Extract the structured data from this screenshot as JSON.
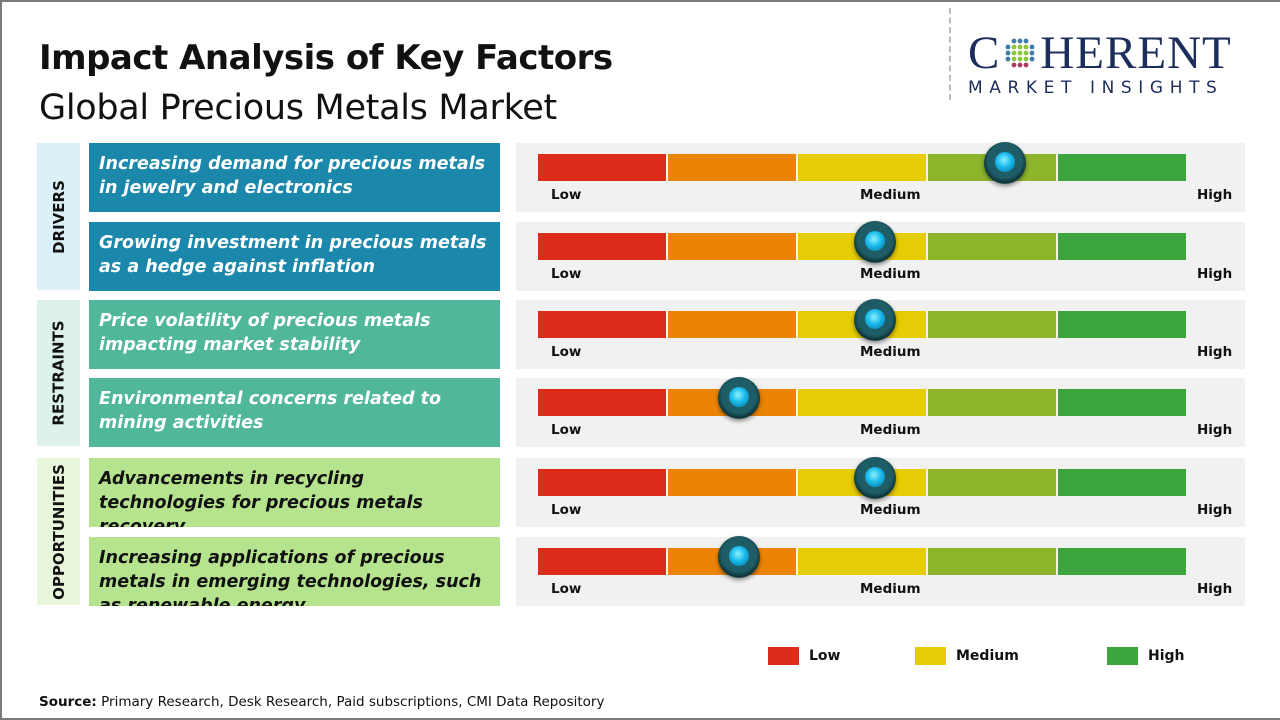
{
  "header": {
    "title": "Impact Analysis of Key Factors",
    "subtitle": "Global Precious Metals Market"
  },
  "logo": {
    "main_text": "COHERENT",
    "sub_text": "MARKET INSIGHTS"
  },
  "scale_labels": {
    "low": "Low",
    "medium": "Medium",
    "high": "High"
  },
  "colors": {
    "segments": [
      "#dd2c1a",
      "#eb8405",
      "#e6cc05",
      "#8db42a",
      "#3da53e"
    ],
    "drivers": "#1b88ab",
    "restraints": "#50b79a",
    "opportunities": "#b5e38e"
  },
  "chart_data": {
    "type": "gauge-table",
    "scale": [
      "Low",
      "Medium",
      "High"
    ],
    "categories": [
      {
        "name": "DRIVERS",
        "factors": [
          {
            "text": "Increasing demand for precious metals in jewelry and electronics",
            "impact": 0.72
          },
          {
            "text": "Growing investment in precious metals as a hedge against inflation",
            "impact": 0.52
          }
        ]
      },
      {
        "name": "RESTRAINTS",
        "factors": [
          {
            "text": "Price volatility of precious metals impacting market stability",
            "impact": 0.52
          },
          {
            "text": "Environmental concerns related to mining activities",
            "impact": 0.31
          }
        ]
      },
      {
        "name": "OPPORTUNITIES",
        "factors": [
          {
            "text": "Advancements in recycling technologies for precious metals recovery",
            "impact": 0.52
          },
          {
            "text": "Increasing applications of precious metals in emerging technologies, such as renewable energy",
            "impact": 0.31
          }
        ]
      }
    ],
    "legend": [
      {
        "label": "Low",
        "color": "#dd2c1a"
      },
      {
        "label": "Medium",
        "color": "#e6cc05"
      },
      {
        "label": "High",
        "color": "#3da53e"
      }
    ]
  },
  "source": {
    "label": "Source:",
    "text": "Primary Research, Desk Research, Paid subscriptions, CMI Data Repository"
  }
}
